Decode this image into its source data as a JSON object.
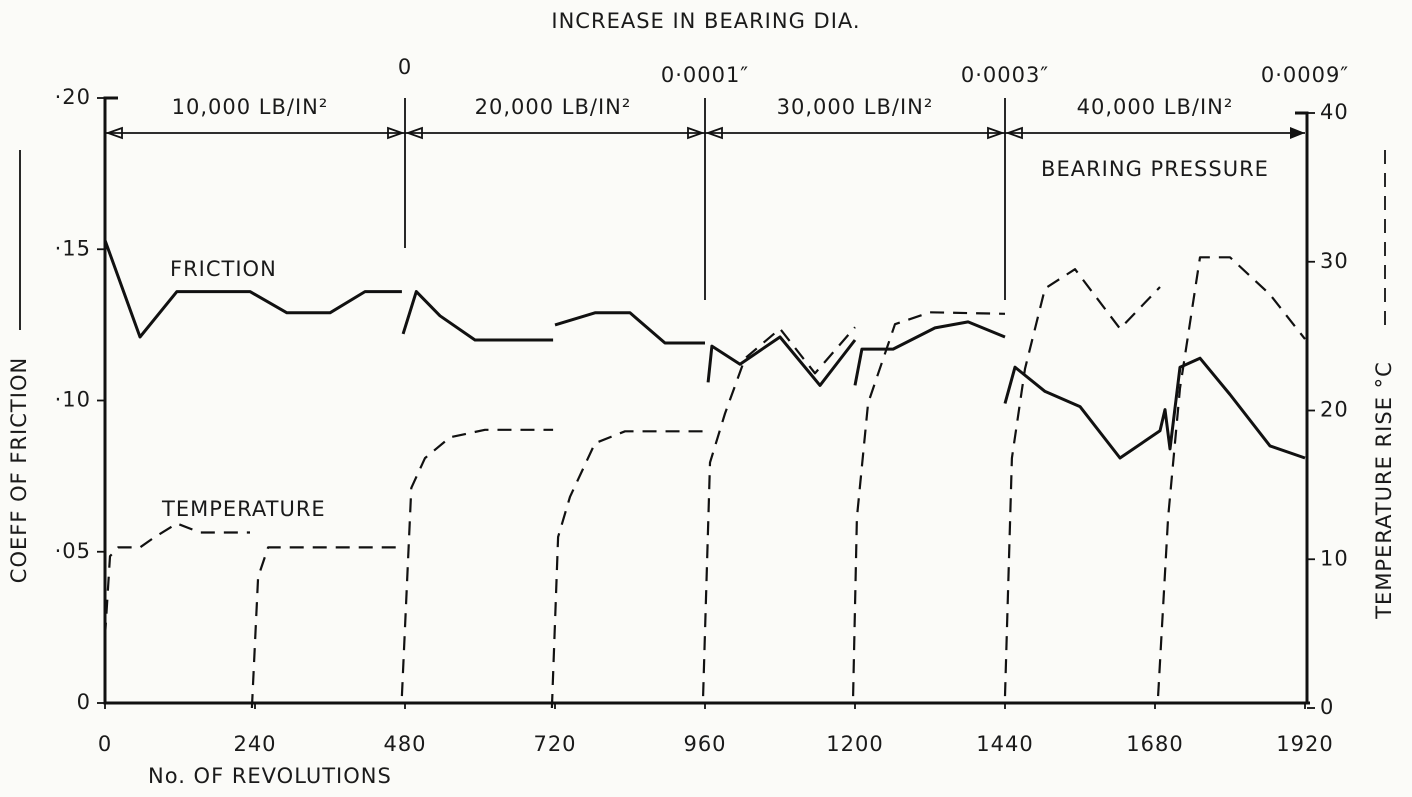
{
  "chart_data": {
    "type": "line",
    "title": "INCREASE IN BEARING DIA.",
    "xlabel": "No.  OF  REVOLUTIONS",
    "ylabel": "COEFF  OF  FRICTION",
    "y2label": "TEMPERATURE  RISE  °C",
    "xlim": [
      0,
      1920
    ],
    "xticks": [
      0,
      240,
      480,
      720,
      960,
      1200,
      1440,
      1680,
      1920
    ],
    "ylim": [
      0,
      0.2
    ],
    "yticks": [
      0,
      {
        "value": 0.05,
        "label": "·05"
      },
      {
        "value": 0.1,
        "label": "·10"
      },
      {
        "value": 0.15,
        "label": "·15"
      },
      {
        "value": 0.2,
        "label": "·20"
      }
    ],
    "y2lim": [
      0,
      40
    ],
    "y2ticks": [
      0,
      10,
      20,
      30,
      40
    ],
    "annotations": {
      "diameter_increase": [
        "0",
        "0·0001″",
        "0·0003″",
        "0·0009″"
      ],
      "pressures": [
        "10,000 LB/IN²",
        "20,000 LB/IN²",
        "30,000 LB/IN²",
        "40,000 LB/IN²"
      ],
      "pressure_label": "BEARING PRESSURE"
    },
    "series": [
      {
        "name": "FRICTION",
        "color": "#111111",
        "style": "solid",
        "x": [
          0,
          56,
          115,
          232,
          291,
          360,
          416,
          475,
          null,
          477,
          498,
          536,
          592,
          717,
          null,
          720,
          784,
          840,
          896,
          960,
          null,
          965,
          971,
          1016,
          1080,
          1144,
          1200,
          null,
          1200,
          1211,
          1261,
          1328,
          1381,
          1440,
          null,
          1440,
          1456,
          1504,
          1560,
          1624,
          1688,
          1696,
          1704,
          1720,
          1752,
          1800,
          1864,
          1920
        ],
        "values": [
          0.153,
          0.121,
          0.136,
          0.136,
          0.129,
          0.129,
          0.136,
          0.136,
          null,
          0.122,
          0.136,
          0.128,
          0.12,
          0.12,
          null,
          0.125,
          0.129,
          0.129,
          0.119,
          0.119,
          null,
          0.106,
          0.118,
          0.112,
          0.121,
          0.105,
          0.12,
          null,
          0.105,
          0.117,
          0.117,
          0.124,
          0.126,
          0.121,
          null,
          0.099,
          0.111,
          0.103,
          0.098,
          0.081,
          0.09,
          0.097,
          0.084,
          0.111,
          0.114,
          0.102,
          0.085,
          0.081
        ]
      },
      {
        "name": "TEMPERATURE",
        "color": "#111111",
        "style": "dashed",
        "axis": "y2",
        "x": [
          0,
          8,
          21,
          56,
          80,
          115,
          152,
          232,
          null,
          235,
          245,
          261,
          475,
          null,
          475,
          490,
          512,
          552,
          608,
          717,
          null,
          715,
          725,
          744,
          784,
          832,
          957,
          null,
          957,
          968,
          992,
          1024,
          1080,
          1136,
          1200,
          null,
          1197,
          1203,
          1221,
          1264,
          1320,
          1440,
          null,
          1440,
          1451,
          1472,
          1504,
          1552,
          1624,
          1688,
          null,
          1685,
          1701,
          1720,
          1752,
          1800,
          1864,
          1920
        ],
        "values": [
          4.8,
          10.2,
          10.8,
          10.8,
          11.5,
          12.4,
          11.8,
          11.8,
          null,
          0,
          8.8,
          10.8,
          10.8,
          null,
          0.8,
          14.8,
          16.8,
          18.2,
          18.7,
          18.7,
          null,
          0,
          11.5,
          14.2,
          17.8,
          18.6,
          18.6,
          null,
          0.8,
          16.5,
          19.8,
          23.5,
          25.5,
          22.5,
          25.6,
          null,
          0.8,
          12.8,
          20.5,
          25.8,
          26.6,
          26.5,
          null,
          0.8,
          16.8,
          22.8,
          28.2,
          29.5,
          25.5,
          28.3,
          null,
          0.8,
          12.8,
          21.5,
          30.3,
          30.3,
          27.8,
          24.8
        ]
      }
    ]
  }
}
